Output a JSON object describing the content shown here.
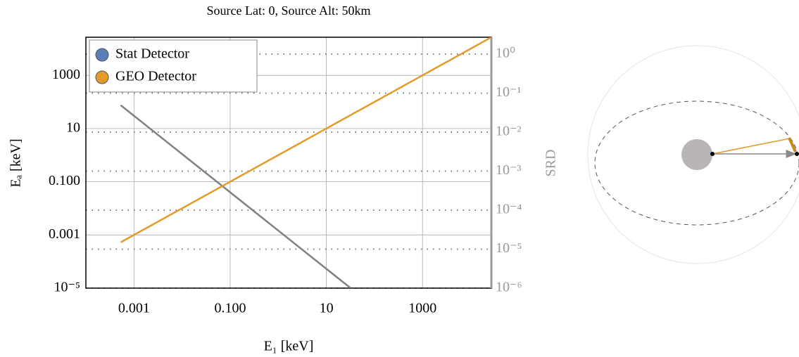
{
  "chart_data": {
    "type": "line",
    "title": "Source Lat: 0, Source Alt: 50km",
    "x_label": "E₁ [keV]",
    "y_label": "Eₐ [keV]",
    "y2_label": "SRD",
    "xlog": true,
    "ylog": true,
    "y2log": true,
    "grid": true,
    "legend": "upper left",
    "xlim": [
      0.0001,
      27000
    ],
    "ylim": [
      1e-05,
      27000
    ],
    "y2lim": [
      1e-06,
      2.7
    ],
    "xticks": [
      0.001,
      {
        "value": 0.1,
        "label": "0.100"
      },
      10,
      1000
    ],
    "yticks": [
      {
        "value": 1e-05,
        "label": "10⁻⁵"
      },
      0.001,
      {
        "value": 0.1,
        "label": "0.100"
      },
      10,
      1000
    ],
    "y2ticks": [
      {
        "value": 1e-06,
        "label": "10⁻⁶"
      },
      {
        "value": 1e-05,
        "label": "10⁻⁵"
      },
      {
        "value": 0.0001,
        "label": "10⁻⁴"
      },
      {
        "value": 0.001,
        "label": "10⁻³"
      },
      {
        "value": 0.01,
        "label": "10⁻²"
      },
      {
        "value": 0.1,
        "label": "10⁻¹"
      },
      {
        "value": 1,
        "label": "10⁰"
      }
    ],
    "series": [
      {
        "name": "Stat Detector",
        "color": "#5b7db8",
        "line_color": "#808080",
        "x": [
          0.00053,
          32
        ],
        "values": [
          75,
          1e-05
        ]
      },
      {
        "name": "GEO Detector",
        "color": "#e39b2a",
        "line_color": "#e39b2a",
        "x": [
          0.00053,
          27000
        ],
        "values": [
          0.00053,
          27000
        ]
      }
    ]
  }
}
